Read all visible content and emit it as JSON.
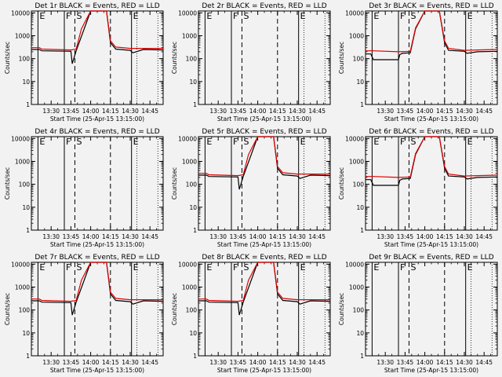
{
  "time_axis": {
    "label": "Start Time (25-Apr-15 13:15:00)",
    "ticks": [
      "13:30",
      "13:45",
      "14:00",
      "14:15",
      "14:30",
      "14:45"
    ],
    "tick_minutes": [
      15,
      30,
      45,
      60,
      75,
      90
    ],
    "range_minutes": [
      0,
      100
    ]
  },
  "y_axis": {
    "label": "Counts/sec",
    "scale": "log",
    "range": [
      1,
      12000
    ],
    "ticks": [
      1,
      10,
      100,
      1000,
      10000
    ],
    "tick_labels": [
      "1",
      "10",
      "100",
      "1000",
      "10000"
    ]
  },
  "markers": [
    {
      "label": "E",
      "minutes": 5,
      "style": "solid"
    },
    {
      "label": "F",
      "minutes": 25,
      "style": "solid"
    },
    {
      "label": "S",
      "minutes": 33,
      "style": "dashed"
    },
    {
      "label": "",
      "minutes": 60,
      "style": "dashed"
    },
    {
      "label": "E",
      "minutes": 76,
      "style": "solid"
    }
  ],
  "colors": {
    "events": "#000000",
    "lld": "#e00000",
    "background": "#f2f2f2"
  },
  "chart_data": [
    {
      "type": "line",
      "title": "Det 1r BLACK = Events, RED = LLD",
      "series": [
        {
          "name": "Events",
          "x": [
            0,
            6,
            8,
            30,
            31,
            34,
            45,
            57,
            60,
            64,
            75,
            77,
            85,
            100
          ],
          "values": [
            250,
            250,
            220,
            210,
            60,
            220,
            12000,
            12000,
            500,
            260,
            230,
            180,
            250,
            240
          ]
        },
        {
          "name": "LLD",
          "x": [
            0,
            6,
            8,
            30,
            34,
            38,
            45,
            57,
            60,
            64,
            75,
            85,
            100
          ],
          "values": [
            300,
            300,
            260,
            240,
            260,
            2000,
            12000,
            12000,
            600,
            320,
            280,
            280,
            280
          ]
        }
      ]
    },
    {
      "type": "line",
      "title": "Det 2r BLACK = Events, RED = LLD",
      "series": []
    },
    {
      "type": "line",
      "title": "Det 3r BLACK = Events, RED = LLD",
      "series": [
        {
          "name": "Events",
          "x": [
            0,
            4,
            6,
            25,
            26,
            28,
            34,
            38,
            45,
            56,
            60,
            63,
            75,
            77,
            85,
            100
          ],
          "values": [
            160,
            160,
            90,
            90,
            150,
            170,
            180,
            2000,
            12000,
            12000,
            500,
            230,
            210,
            170,
            200,
            210
          ]
        },
        {
          "name": "LLD",
          "x": [
            0,
            6,
            25,
            34,
            38,
            45,
            56,
            60,
            63,
            75,
            85,
            100
          ],
          "values": [
            220,
            220,
            200,
            210,
            2200,
            12000,
            12000,
            600,
            280,
            230,
            240,
            250
          ]
        }
      ]
    },
    {
      "type": "line",
      "title": "Det 4r BLACK = Events, RED = LLD",
      "series": []
    },
    {
      "type": "line",
      "title": "Det 5r BLACK = Events, RED = LLD",
      "series": [
        {
          "name": "Events",
          "x": [
            0,
            6,
            8,
            30,
            31,
            34,
            45,
            57,
            60,
            64,
            75,
            77,
            85,
            100
          ],
          "values": [
            250,
            250,
            220,
            210,
            60,
            220,
            12000,
            12000,
            500,
            260,
            230,
            180,
            250,
            240
          ]
        },
        {
          "name": "LLD",
          "x": [
            0,
            6,
            8,
            30,
            34,
            38,
            45,
            57,
            60,
            64,
            75,
            85,
            100
          ],
          "values": [
            300,
            300,
            260,
            240,
            260,
            2000,
            12000,
            12000,
            600,
            320,
            280,
            280,
            280
          ]
        }
      ]
    },
    {
      "type": "line",
      "title": "Det 6r BLACK = Events, RED = LLD",
      "series": [
        {
          "name": "Events",
          "x": [
            0,
            4,
            6,
            25,
            26,
            28,
            34,
            38,
            45,
            56,
            60,
            63,
            75,
            77,
            85,
            100
          ],
          "values": [
            160,
            160,
            90,
            90,
            150,
            170,
            180,
            2000,
            12000,
            12000,
            500,
            230,
            210,
            170,
            200,
            210
          ]
        },
        {
          "name": "LLD",
          "x": [
            0,
            6,
            25,
            34,
            38,
            45,
            56,
            60,
            63,
            75,
            85,
            100
          ],
          "values": [
            220,
            220,
            200,
            210,
            2200,
            12000,
            12000,
            600,
            280,
            230,
            240,
            250
          ]
        }
      ]
    },
    {
      "type": "line",
      "title": "Det 7r BLACK = Events, RED = LLD",
      "series": [
        {
          "name": "Events",
          "x": [
            0,
            6,
            8,
            30,
            31,
            34,
            45,
            57,
            60,
            64,
            75,
            77,
            85,
            100
          ],
          "values": [
            250,
            250,
            220,
            210,
            60,
            220,
            12000,
            12000,
            500,
            260,
            230,
            180,
            250,
            240
          ]
        },
        {
          "name": "LLD",
          "x": [
            0,
            6,
            8,
            30,
            34,
            38,
            45,
            57,
            60,
            64,
            75,
            85,
            100
          ],
          "values": [
            300,
            300,
            260,
            240,
            260,
            2000,
            12000,
            12000,
            600,
            320,
            280,
            280,
            280
          ]
        }
      ]
    },
    {
      "type": "line",
      "title": "Det 8r BLACK = Events, RED = LLD",
      "series": [
        {
          "name": "Events",
          "x": [
            0,
            6,
            8,
            30,
            31,
            34,
            45,
            57,
            60,
            64,
            75,
            77,
            85,
            100
          ],
          "values": [
            250,
            250,
            220,
            210,
            60,
            220,
            12000,
            12000,
            500,
            260,
            230,
            180,
            250,
            240
          ]
        },
        {
          "name": "LLD",
          "x": [
            0,
            6,
            8,
            30,
            34,
            38,
            45,
            57,
            60,
            64,
            75,
            85,
            100
          ],
          "values": [
            300,
            300,
            260,
            240,
            260,
            2000,
            12000,
            12000,
            600,
            320,
            280,
            280,
            280
          ]
        }
      ]
    },
    {
      "type": "line",
      "title": "Det 9r BLACK = Events, RED = LLD",
      "series": []
    }
  ]
}
